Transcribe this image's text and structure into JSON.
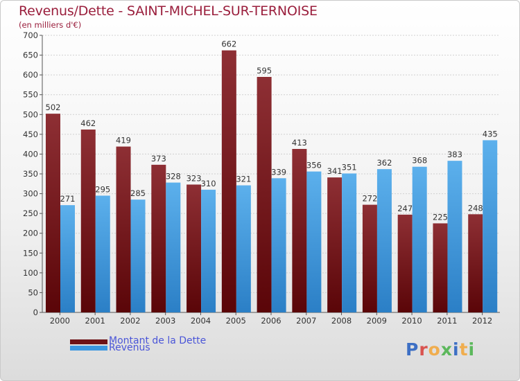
{
  "header": {
    "title": "Revenus/Dette - SAINT-MICHEL-SUR-TERNOISE",
    "subtitle": "(en milliers d'€)"
  },
  "colors": {
    "debt_top": "#8e2f34",
    "debt_bottom": "#5a0508",
    "revenue_top": "#5cb0ec",
    "revenue_bottom": "#2b7fc6",
    "title": "#9a1e3c",
    "legend_text": "#4a55d8"
  },
  "legend": {
    "items": [
      {
        "label": "Montant de la Dette",
        "color": "#6e1216"
      },
      {
        "label": "Revenus",
        "color": "#3c97e0"
      }
    ]
  },
  "logo": {
    "text": "Proxiti",
    "letter_colors": [
      "#3d6fc4",
      "#d9534f",
      "#f0ad4e",
      "#5cb85c",
      "#3d6fc4",
      "#f0ad4e",
      "#5cb85c"
    ]
  },
  "chart_data": {
    "type": "bar",
    "title": "Revenus/Dette - SAINT-MICHEL-SUR-TERNOISE",
    "subtitle": "(en milliers d'€)",
    "xlabel": "",
    "ylabel": "",
    "categories": [
      "2000",
      "2001",
      "2002",
      "2003",
      "2004",
      "2005",
      "2006",
      "2007",
      "2008",
      "2009",
      "2010",
      "2011",
      "2012"
    ],
    "series": [
      {
        "name": "Montant de la Dette",
        "values": [
          502,
          462,
          419,
          373,
          323,
          662,
          595,
          413,
          341,
          272,
          247,
          225,
          248
        ]
      },
      {
        "name": "Revenus",
        "values": [
          271,
          295,
          285,
          328,
          310,
          321,
          339,
          356,
          351,
          362,
          368,
          383,
          435
        ]
      }
    ],
    "ylim": [
      0,
      700
    ],
    "yticks": [
      0,
      50,
      100,
      150,
      200,
      250,
      300,
      350,
      400,
      450,
      500,
      550,
      600,
      650,
      700
    ],
    "grid": true,
    "legend_position": "bottom-left"
  }
}
